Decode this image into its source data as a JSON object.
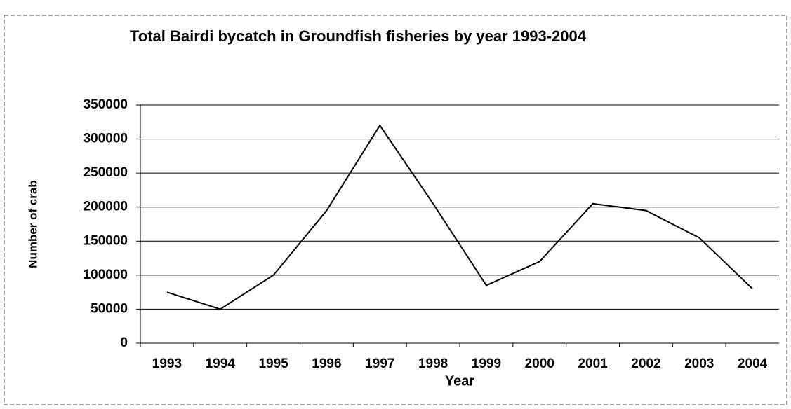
{
  "chart_data": {
    "type": "line",
    "title": "Total Bairdi bycatch in Groundfish fisheries by year 1993-2004",
    "x_label": "Year",
    "y_label": "Number of crab",
    "categories": [
      "1993",
      "1994",
      "1995",
      "1996",
      "1997",
      "1998",
      "1999",
      "2000",
      "2001",
      "2002",
      "2003",
      "2004"
    ],
    "series": [
      {
        "name": "Total Bairdi bycatch",
        "color": "#000000",
        "values": [
          75000,
          50000,
          100000,
          195000,
          320000,
          205000,
          85000,
          120000,
          205000,
          195000,
          155000,
          80000
        ]
      }
    ],
    "ylim": [
      0,
      350000
    ],
    "yticks": [
      0,
      50000,
      100000,
      150000,
      200000,
      250000,
      300000,
      350000
    ],
    "grid": true
  }
}
